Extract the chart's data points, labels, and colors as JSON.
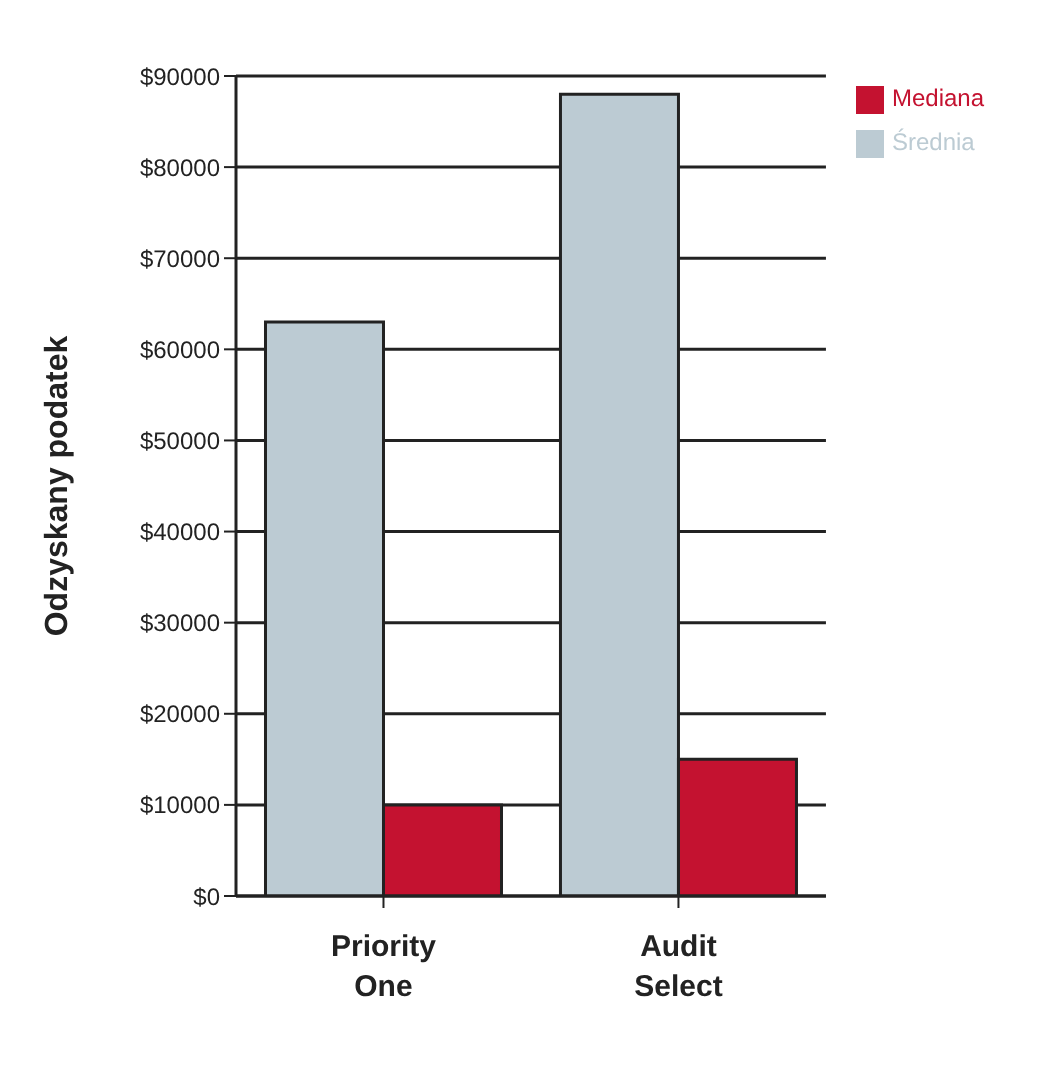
{
  "chart_data": {
    "type": "bar",
    "ylabel": "Odzyskany podatek",
    "categories": [
      "Priority One",
      "Audit Select"
    ],
    "series": [
      {
        "name": "Średnia",
        "color": "#bccbd3",
        "values": [
          63000,
          88000
        ]
      },
      {
        "name": "Mediana",
        "color": "#c41230",
        "values": [
          10000,
          15000
        ]
      }
    ],
    "ylim": [
      0,
      90000
    ],
    "yticks": [
      {
        "value": 0,
        "label": "$0"
      },
      {
        "value": 10000,
        "label": "$10000"
      },
      {
        "value": 20000,
        "label": "$20000"
      },
      {
        "value": 30000,
        "label": "$30000"
      },
      {
        "value": 40000,
        "label": "$40000"
      },
      {
        "value": 50000,
        "label": "$50000"
      },
      {
        "value": 60000,
        "label": "$60000"
      },
      {
        "value": 70000,
        "label": "$70000"
      },
      {
        "value": 80000,
        "label": "$80000"
      },
      {
        "value": 90000,
        "label": "$90000"
      }
    ],
    "grid": "y",
    "legend": "top right"
  }
}
